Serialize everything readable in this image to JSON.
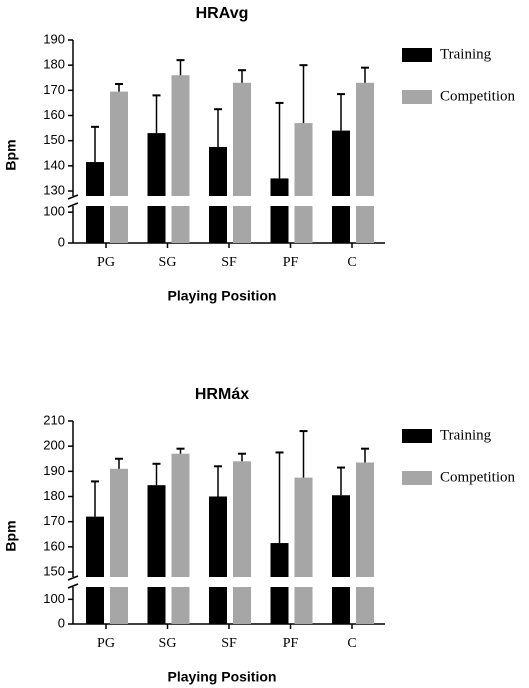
{
  "chart_data": [
    {
      "type": "bar",
      "title": "HRAvg",
      "x_label": "Playing Position",
      "y_label": "Bpm",
      "categories": [
        "PG",
        "SG",
        "SF",
        "PF",
        "C"
      ],
      "ylim": [
        130,
        190
      ],
      "yticks": [
        130,
        140,
        150,
        160,
        170,
        180,
        190
      ],
      "lower_ylim": [
        0,
        120
      ],
      "lower_yticks": [
        0,
        100
      ],
      "error_bars": true,
      "series": [
        {
          "name": "Training",
          "color": "#000000",
          "values": [
            141.5,
            153,
            147.5,
            135,
            154
          ],
          "errors": [
            14,
            15,
            15,
            30,
            14.5
          ]
        },
        {
          "name": "Competition",
          "color": "#a6a6a6",
          "values": [
            169.5,
            176,
            173,
            157,
            173
          ],
          "errors": [
            3,
            6,
            5,
            23,
            6
          ]
        }
      ]
    },
    {
      "type": "bar",
      "title": "HRMáx",
      "x_label": "Playing Position",
      "y_label": "Bpm",
      "categories": [
        "PG",
        "SG",
        "SF",
        "PF",
        "C"
      ],
      "ylim": [
        150,
        210
      ],
      "yticks": [
        150,
        160,
        170,
        180,
        190,
        200,
        210
      ],
      "lower_ylim": [
        0,
        150
      ],
      "lower_yticks": [
        0,
        100
      ],
      "error_bars": true,
      "series": [
        {
          "name": "Training",
          "color": "#000000",
          "values": [
            172,
            184.5,
            180,
            161.5,
            180.5
          ],
          "errors": [
            14,
            8.5,
            12,
            36,
            11
          ]
        },
        {
          "name": "Competition",
          "color": "#a6a6a6",
          "values": [
            191,
            197,
            194,
            187.5,
            193.5
          ],
          "errors": [
            4,
            2,
            3,
            18.5,
            5.5
          ]
        }
      ]
    }
  ]
}
